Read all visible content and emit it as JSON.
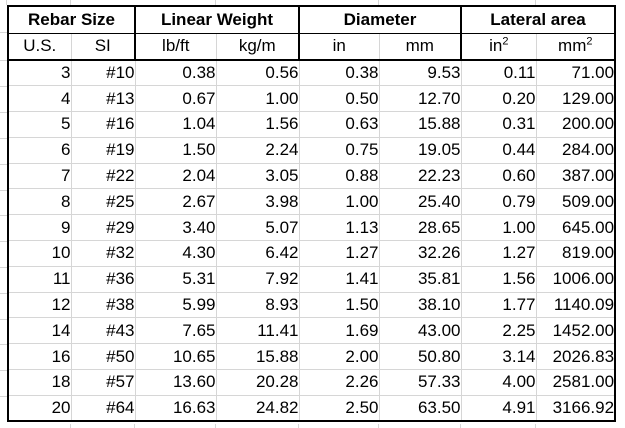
{
  "table": {
    "column_groups": [
      {
        "label": "Rebar Size"
      },
      {
        "label": "Linear Weight"
      },
      {
        "label": "Diameter"
      },
      {
        "label": "Lateral area"
      }
    ],
    "subheaders": [
      {
        "text": "U.S.",
        "sup": ""
      },
      {
        "text": "SI",
        "sup": ""
      },
      {
        "text": "lb/ft",
        "sup": ""
      },
      {
        "text": "kg/m",
        "sup": ""
      },
      {
        "text": "in",
        "sup": ""
      },
      {
        "text": "mm",
        "sup": ""
      },
      {
        "text": "in",
        "sup": "2"
      },
      {
        "text": "mm",
        "sup": "2"
      }
    ],
    "rows": [
      [
        "3",
        "#10",
        "0.38",
        "0.56",
        "0.38",
        "9.53",
        "0.11",
        "71.00"
      ],
      [
        "4",
        "#13",
        "0.67",
        "1.00",
        "0.50",
        "12.70",
        "0.20",
        "129.00"
      ],
      [
        "5",
        "#16",
        "1.04",
        "1.56",
        "0.63",
        "15.88",
        "0.31",
        "200.00"
      ],
      [
        "6",
        "#19",
        "1.50",
        "2.24",
        "0.75",
        "19.05",
        "0.44",
        "284.00"
      ],
      [
        "7",
        "#22",
        "2.04",
        "3.05",
        "0.88",
        "22.23",
        "0.60",
        "387.00"
      ],
      [
        "8",
        "#25",
        "2.67",
        "3.98",
        "1.00",
        "25.40",
        "0.79",
        "509.00"
      ],
      [
        "9",
        "#29",
        "3.40",
        "5.07",
        "1.13",
        "28.65",
        "1.00",
        "645.00"
      ],
      [
        "10",
        "#32",
        "4.30",
        "6.42",
        "1.27",
        "32.26",
        "1.27",
        "819.00"
      ],
      [
        "11",
        "#36",
        "5.31",
        "7.92",
        "1.41",
        "35.81",
        "1.56",
        "1006.00"
      ],
      [
        "12",
        "#38",
        "5.99",
        "8.93",
        "1.50",
        "38.10",
        "1.77",
        "1140.09"
      ],
      [
        "14",
        "#43",
        "7.65",
        "11.41",
        "1.69",
        "43.00",
        "2.25",
        "1452.00"
      ],
      [
        "16",
        "#50",
        "10.65",
        "15.88",
        "2.00",
        "50.80",
        "3.14",
        "2026.83"
      ],
      [
        "18",
        "#57",
        "13.60",
        "20.28",
        "2.26",
        "57.33",
        "4.00",
        "2581.00"
      ],
      [
        "20",
        "#64",
        "16.63",
        "24.82",
        "2.50",
        "63.50",
        "4.91",
        "3166.92"
      ]
    ],
    "colors": {
      "border": "#000000",
      "gridline": "#d6d6d6",
      "background": "#ffffff",
      "text": "#000000"
    }
  }
}
